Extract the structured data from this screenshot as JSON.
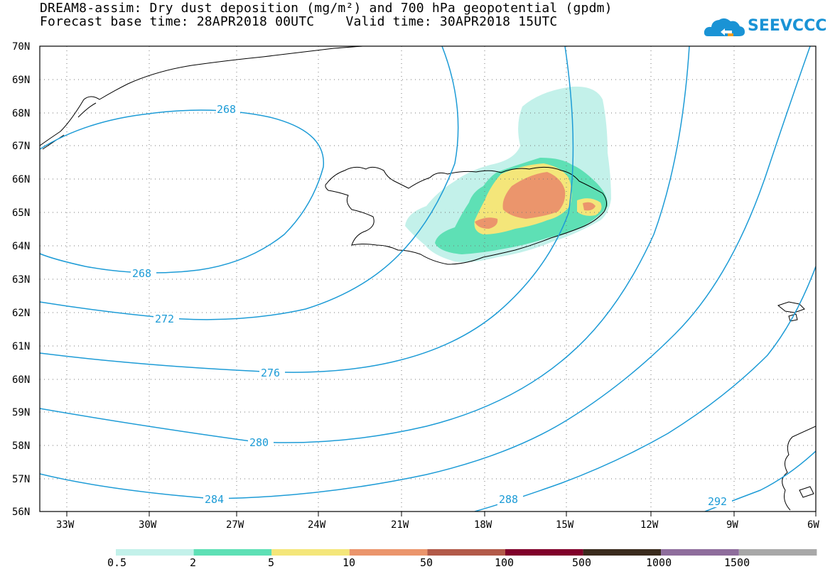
{
  "title_line1": "DREAM8-assim: Dry dust deposition (mg/m²) and 700 hPa geopotential (gpdm)",
  "title_line2": "Forecast base time: 28APR2018 00UTC    Valid time: 30APR2018 15UTC",
  "logo_text": "SEEVCCC",
  "lat_labels": [
    "70N",
    "69N",
    "68N",
    "67N",
    "66N",
    "65N",
    "64N",
    "63N",
    "62N",
    "61N",
    "60N",
    "59N",
    "58N",
    "57N",
    "56N"
  ],
  "lon_labels": [
    "33W",
    "30W",
    "27W",
    "24W",
    "21W",
    "18W",
    "15W",
    "12W",
    "9W",
    "6W"
  ],
  "contour_labels": [
    "268",
    "268",
    "272",
    "276",
    "280",
    "284",
    "288",
    "292"
  ],
  "legend": {
    "labels": [
      "0.5",
      "2",
      "5",
      "10",
      "50",
      "100",
      "500",
      "1000",
      "1500"
    ],
    "colors": [
      "#c3f1ea",
      "#5ee0b5",
      "#f4e67a",
      "#eb956c",
      "#b25a49",
      "#80002a",
      "#3a2b1d",
      "#8e6d9c",
      "#a8a8a8"
    ]
  },
  "colors": {
    "contour": "#1c9bd6",
    "coast": "#000000",
    "dust_lowest": "#c3f1ea",
    "dust_low": "#5ee0b5",
    "dust_mid": "#f4e67a",
    "dust_high": "#eb956c"
  }
}
